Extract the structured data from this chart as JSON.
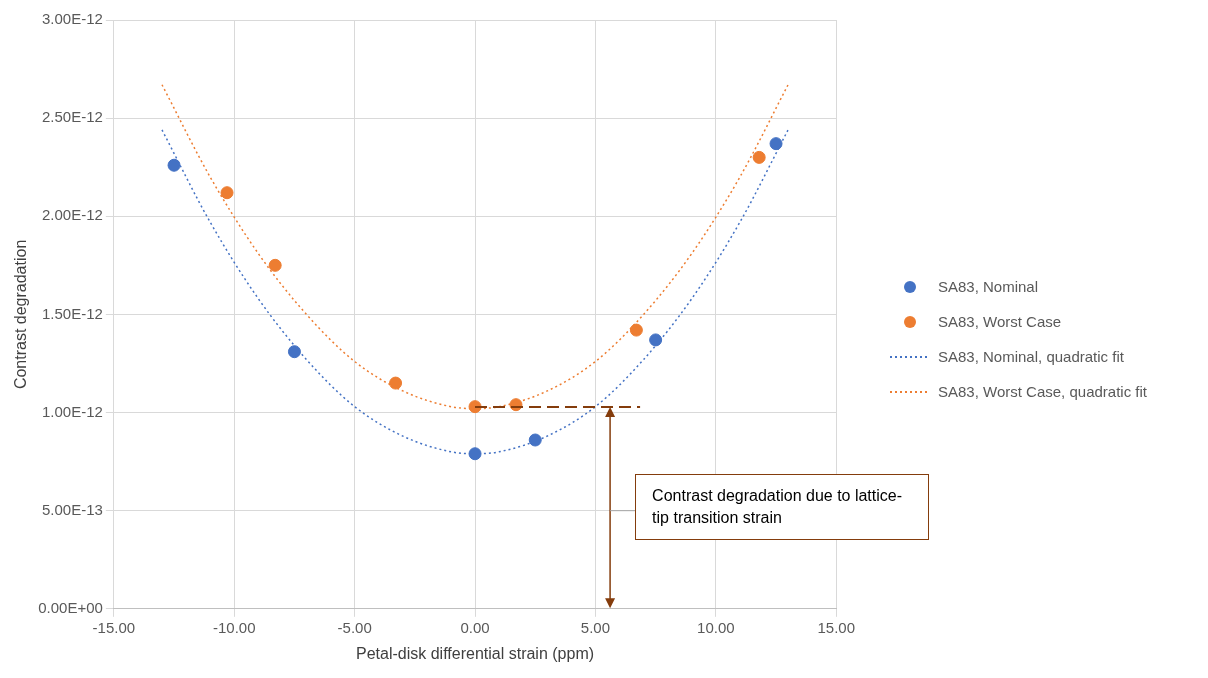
{
  "chart_data": {
    "type": "scatter",
    "xlabel": "Petal-disk differential strain (ppm)",
    "ylabel": "Contrast degradation",
    "xlim": [
      -15,
      15
    ],
    "xticks": [
      {
        "value": -15,
        "label": "-15.00"
      },
      {
        "value": -10,
        "label": "-10.00"
      },
      {
        "value": -5,
        "label": "-5.00"
      },
      {
        "value": 0,
        "label": "0.00"
      },
      {
        "value": 5,
        "label": "5.00"
      },
      {
        "value": 10,
        "label": "10.00"
      },
      {
        "value": 15,
        "label": "15.00"
      }
    ],
    "ylim": [
      0,
      3e-12
    ],
    "yticks": [
      {
        "value": 0,
        "label": "0.00E+00"
      },
      {
        "value": 5e-13,
        "label": "5.00E-13"
      },
      {
        "value": 1e-12,
        "label": "1.00E-12"
      },
      {
        "value": 1.5e-12,
        "label": "1.50E-12"
      },
      {
        "value": 2e-12,
        "label": "2.00E-12"
      },
      {
        "value": 2.5e-12,
        "label": "2.50E-12"
      },
      {
        "value": 3e-12,
        "label": "3.00E-12"
      }
    ],
    "grid": true,
    "legend": "right",
    "marker": "circle",
    "series": [
      {
        "name": "SA83, Nominal",
        "type": "scatter",
        "color": "#4472c4",
        "x": [
          -12.5,
          -7.5,
          0,
          2.5,
          7.5,
          12.5
        ],
        "values": [
          2.26e-12,
          1.31e-12,
          7.9e-13,
          8.6e-13,
          1.37e-12,
          2.37e-12
        ]
      },
      {
        "name": "SA83, Worst Case",
        "type": "scatter",
        "color": "#ed7d31",
        "x": [
          -10.3,
          -8.3,
          -3.3,
          0,
          1.7,
          6.7,
          11.8
        ],
        "values": [
          2.12e-12,
          1.75e-12,
          1.15e-12,
          1.03e-12,
          1.04e-12,
          1.42e-12,
          2.3e-12
        ]
      },
      {
        "name": "SA83, Nominal, quadratic fit",
        "type": "line",
        "marker": "none",
        "line_style": "dotted",
        "color": "#4472c4",
        "x": [
          -13,
          -11,
          -9,
          -7,
          -5,
          -3,
          -1,
          0,
          1,
          3,
          5,
          7,
          9,
          11,
          13
        ],
        "values": [
          2.44e-12,
          1.97e-12,
          1.58e-12,
          1.27e-12,
          1.03e-12,
          8.8e-13,
          8e-13,
          7.9e-13,
          8e-13,
          8.8e-13,
          1.03e-12,
          1.27e-12,
          1.58e-12,
          1.97e-12,
          2.44e-12
        ]
      },
      {
        "name": "SA83, Worst Case, quadratic fit",
        "type": "line",
        "marker": "none",
        "line_style": "dotted",
        "color": "#ed7d31",
        "x": [
          -13,
          -11,
          -9,
          -7,
          -5,
          -3,
          -1,
          0,
          1,
          3,
          5,
          7,
          9,
          11,
          13
        ],
        "values": [
          2.67e-12,
          2.2e-12,
          1.81e-12,
          1.5e-12,
          1.26e-12,
          1.11e-12,
          1.03e-12,
          1.02e-12,
          1.03e-12,
          1.11e-12,
          1.26e-12,
          1.5e-12,
          1.81e-12,
          2.2e-12,
          2.67e-12
        ]
      }
    ],
    "annotations": [
      "Contrast degradation due to lattice-tip transition strain"
    ]
  }
}
